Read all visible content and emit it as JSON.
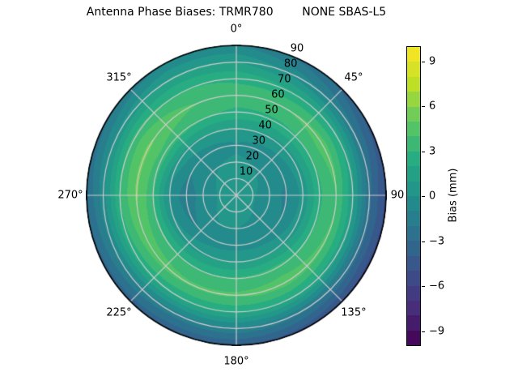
{
  "title": "Antenna Phase Biases: TRMR780        NONE SBAS-L5",
  "chart_data": {
    "type": "heatmap",
    "projection": "polar",
    "azimuth_zero": "top",
    "azimuth_direction": "clockwise",
    "radial_range": [
      0,
      90
    ],
    "radial_label_angle_deg": 22.5,
    "azimuth_ticks": [
      {
        "label": "0°",
        "angle": 0
      },
      {
        "label": "45°",
        "angle": 45
      },
      {
        "label": "90",
        "angle": 90
      },
      {
        "label": "135°",
        "angle": 135
      },
      {
        "label": "180°",
        "angle": 180
      },
      {
        "label": "225°",
        "angle": 225
      },
      {
        "label": "270°",
        "angle": 270
      },
      {
        "label": "315°",
        "angle": 315
      }
    ],
    "radial_ticks": [
      {
        "label": "10",
        "value": 10
      },
      {
        "label": "20",
        "value": 20
      },
      {
        "label": "30",
        "value": 30
      },
      {
        "label": "40",
        "value": 40
      },
      {
        "label": "50",
        "value": 50
      },
      {
        "label": "60",
        "value": 60
      },
      {
        "label": "70",
        "value": 70
      },
      {
        "label": "80",
        "value": 80
      },
      {
        "label": "90",
        "value": 90
      }
    ],
    "grid": {
      "ring_values": [
        10,
        20,
        30,
        40,
        50,
        60,
        70,
        80
      ],
      "spoke_angles_deg": [
        0,
        45,
        90,
        135,
        180,
        225,
        270,
        315
      ],
      "grid_color": "#cccccc",
      "outline_color": "#000000"
    },
    "colorbar": {
      "label": "Bias (mm)",
      "colormap": "viridis",
      "vmin": -10,
      "vmax": 10,
      "levels": 20,
      "ticks": [
        {
          "label": "9",
          "value": 9
        },
        {
          "label": "6",
          "value": 6
        },
        {
          "label": "3",
          "value": 3
        },
        {
          "label": "0",
          "value": 0
        },
        {
          "label": "−3",
          "value": -3
        },
        {
          "label": "−6",
          "value": -6
        },
        {
          "label": "−9",
          "value": -9
        }
      ]
    },
    "bias_grid_mm": {
      "comment": "bias (mm) sampled on azimuth (deg, clockwise from N) x radius grid",
      "azimuth_deg": [
        0,
        30,
        60,
        90,
        120,
        150,
        180,
        210,
        240,
        270,
        300,
        330
      ],
      "radius": [
        0,
        10,
        20,
        30,
        40,
        50,
        60,
        70,
        80,
        90
      ],
      "values": [
        [
          0.5,
          0.5,
          0.2,
          -0.2,
          1.0,
          2.8,
          3.5,
          2.8,
          1.0,
          -1.0
        ],
        [
          0.5,
          0.4,
          0.0,
          -0.5,
          0.8,
          2.8,
          4.0,
          2.2,
          -0.5,
          -2.5
        ],
        [
          0.5,
          0.3,
          -0.3,
          -0.8,
          0.6,
          3.0,
          4.6,
          2.0,
          -1.8,
          -4.2
        ],
        [
          0.5,
          0.1,
          -0.6,
          -1.2,
          0.3,
          2.8,
          4.0,
          1.2,
          -2.8,
          -5.2
        ],
        [
          0.5,
          0.1,
          -0.5,
          -1.0,
          0.5,
          3.0,
          4.2,
          1.5,
          -2.6,
          -5.4
        ],
        [
          0.5,
          0.3,
          -0.2,
          -0.6,
          1.0,
          3.4,
          4.5,
          2.0,
          -1.8,
          -4.6
        ],
        [
          0.5,
          0.4,
          0.0,
          -0.4,
          1.0,
          3.2,
          4.2,
          2.2,
          -1.2,
          -4.0
        ],
        [
          0.5,
          0.4,
          0.0,
          -0.6,
          0.8,
          3.0,
          4.2,
          2.2,
          -1.5,
          -3.8
        ],
        [
          0.5,
          0.2,
          -0.4,
          -1.2,
          0.3,
          3.2,
          4.6,
          2.5,
          -1.0,
          -3.4
        ],
        [
          0.5,
          0.1,
          -0.6,
          -1.6,
          -0.3,
          3.2,
          5.2,
          3.0,
          -0.5,
          -3.0
        ],
        [
          0.5,
          0.2,
          -0.3,
          -0.9,
          0.6,
          3.6,
          5.2,
          3.4,
          0.2,
          -2.2
        ],
        [
          0.5,
          0.4,
          0.0,
          -0.5,
          0.9,
          3.2,
          4.2,
          3.0,
          1.2,
          -1.0
        ]
      ]
    }
  }
}
